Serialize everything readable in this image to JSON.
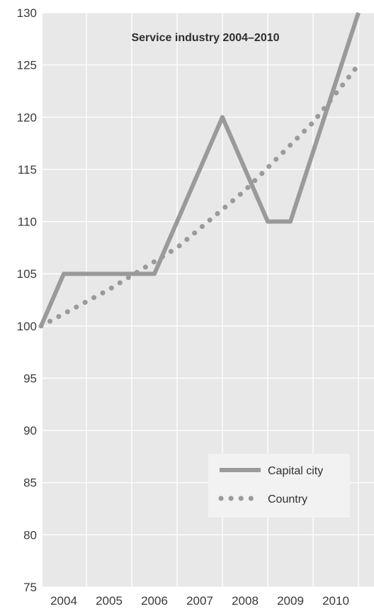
{
  "chart_data": {
    "type": "line",
    "title": "Service industry 2004–2010",
    "xlabel": "",
    "ylabel": "",
    "x_ticks": [
      "2004",
      "2005",
      "2006",
      "2007",
      "2008",
      "2009",
      "2010"
    ],
    "y_ticks": [
      "75",
      "80",
      "85",
      "90",
      "95",
      "100",
      "105",
      "110",
      "115",
      "120",
      "125",
      "130"
    ],
    "ylim": [
      75,
      130
    ],
    "grid": true,
    "legend_position": "bottom-right",
    "series": [
      {
        "name": "Capital city",
        "style": "solid",
        "color": "#9a9a9a",
        "x": [
          2003.5,
          2004,
          2005,
          2006,
          2007.5,
          2008.5,
          2009,
          2010.5
        ],
        "y": [
          100,
          105,
          105,
          105,
          120,
          110,
          110,
          130
        ]
      },
      {
        "name": "Country",
        "style": "dotted",
        "color": "#9a9a9a",
        "x": [
          2003.5,
          2005,
          2006.5,
          2008,
          2009.5,
          2010.5
        ],
        "y": [
          100,
          103.5,
          107.5,
          113,
          119.5,
          125
        ]
      }
    ]
  }
}
